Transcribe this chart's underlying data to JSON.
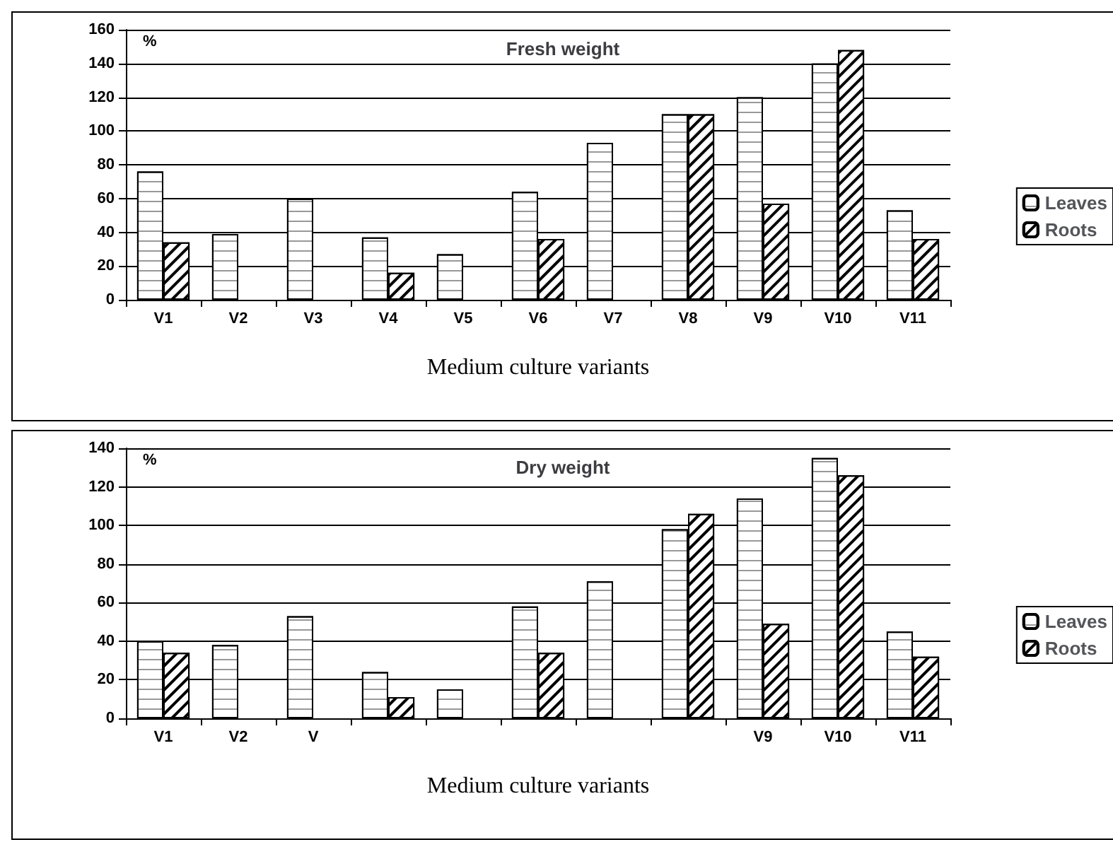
{
  "chart_data": [
    {
      "type": "bar",
      "title": "Fresh weight",
      "xlabel": "Medium culture variants",
      "ylabel": "%",
      "categories": [
        "V1",
        "V2",
        "V3",
        "V4",
        "V5",
        "V6",
        "V7",
        "V8",
        "V9",
        "V10",
        "V11"
      ],
      "series": [
        {
          "name": "Leaves",
          "color": "#ffffff",
          "values": [
            76,
            39,
            60,
            37,
            27,
            64,
            93,
            110,
            120,
            140,
            53
          ]
        },
        {
          "name": "Roots",
          "color": "#ffffff",
          "values": [
            34,
            0,
            0,
            16,
            0,
            36,
            0,
            110,
            57,
            148,
            36
          ]
        }
      ],
      "ylim": [
        0,
        160
      ],
      "yticks": [
        0,
        20,
        40,
        60,
        80,
        100,
        120,
        140,
        160
      ],
      "grid": "y",
      "legend": "right"
    },
    {
      "type": "bar",
      "title": "Dry weight",
      "xlabel": "Medium culture variants",
      "ylabel": "%",
      "categories": [
        "V1",
        "V2",
        "V",
        null,
        null,
        null,
        null,
        null,
        "V9",
        "V10",
        "V11"
      ],
      "series": [
        {
          "name": "Leaves",
          "color": "#ffffff",
          "values": [
            40,
            38,
            53,
            24,
            15,
            58,
            71,
            98,
            114,
            135,
            45
          ]
        },
        {
          "name": "Roots",
          "color": "#ffffff",
          "values": [
            34,
            0,
            0,
            11,
            0,
            34,
            0,
            106,
            49,
            126,
            32
          ]
        }
      ],
      "ylim": [
        0,
        140
      ],
      "yticks": [
        0,
        20,
        40,
        60,
        80,
        100,
        120,
        140
      ],
      "grid": "y",
      "legend": "right"
    }
  ]
}
